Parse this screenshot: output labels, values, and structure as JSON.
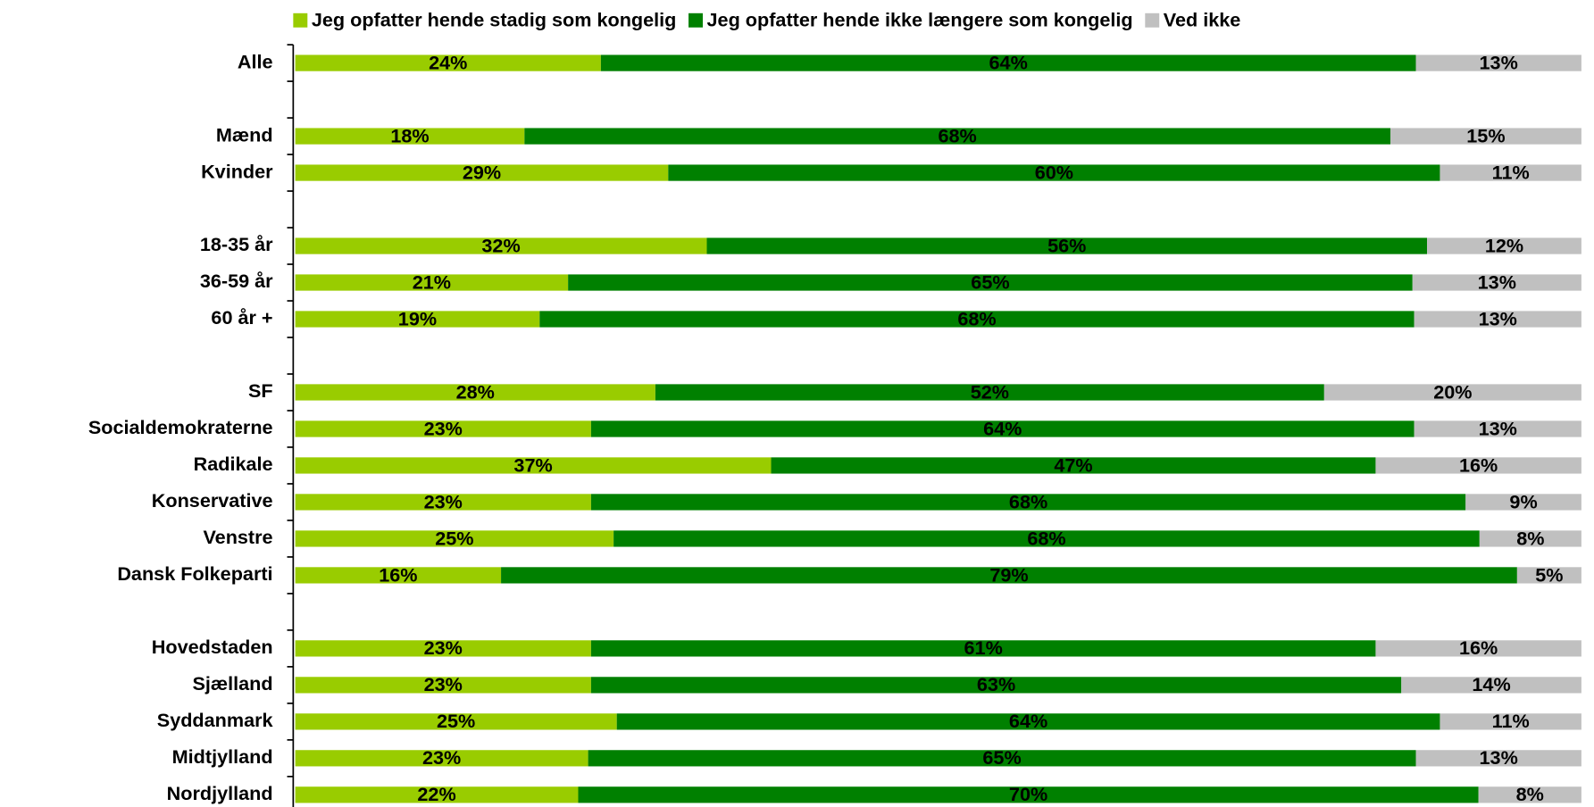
{
  "chart_data": {
    "type": "bar",
    "orientation": "horizontal",
    "stacked": "percent",
    "legend": "top",
    "categories": [
      "Alle",
      null,
      "Mænd",
      "Kvinder",
      null,
      "18-35 år",
      "36-59 år",
      "60 år +",
      null,
      "SF",
      "Socialdemokraterne",
      "Radikale",
      "Konservative",
      "Venstre",
      "Dansk Folkeparti",
      null,
      "Hovedstaden",
      "Sjælland",
      "Syddanmark",
      "Midtjylland",
      "Nordjylland"
    ],
    "series": [
      {
        "name": "Jeg opfatter hende stadig som kongelig",
        "color": "#99cc00",
        "values": [
          24,
          null,
          18,
          29,
          null,
          32,
          21,
          19,
          null,
          28,
          23,
          37,
          23,
          25,
          16,
          null,
          23,
          23,
          25,
          23,
          22
        ],
        "value_labels": [
          "24%",
          null,
          "18%",
          "29%",
          null,
          "32%",
          "21%",
          "19%",
          null,
          "28%",
          "23%",
          "37%",
          "23%",
          "25%",
          "16%",
          null,
          "23%",
          "23%",
          "25%",
          "23%",
          "22%"
        ]
      },
      {
        "name": "Jeg opfatter hende ikke længere som kongelig",
        "color": "#008000",
        "values": [
          64,
          null,
          68,
          60,
          null,
          56,
          65,
          68,
          null,
          52,
          64,
          47,
          68,
          68,
          79,
          null,
          61,
          63,
          64,
          65,
          70
        ],
        "value_labels": [
          "64%",
          null,
          "68%",
          "60%",
          null,
          "56%",
          "65%",
          "68%",
          null,
          "52%",
          "64%",
          "47%",
          "68%",
          "68%",
          "79%",
          null,
          "61%",
          "63%",
          "64%",
          "65%",
          "70%"
        ]
      },
      {
        "name": "Ved ikke",
        "color": "#c0c0c0",
        "values": [
          13,
          null,
          15,
          11,
          null,
          12,
          13,
          13,
          null,
          20,
          13,
          16,
          9,
          8,
          5,
          null,
          16,
          14,
          11,
          13,
          8
        ],
        "value_labels": [
          "13%",
          null,
          "15%",
          "11%",
          null,
          "12%",
          "13%",
          "13%",
          null,
          "20%",
          "13%",
          "16%",
          "9%",
          "8%",
          "5%",
          null,
          "16%",
          "14%",
          "11%",
          "13%",
          "8%"
        ]
      }
    ]
  }
}
